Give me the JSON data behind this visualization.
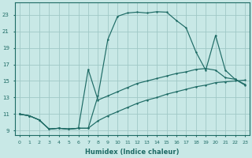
{
  "xlabel": "Humidex (Indice chaleur)",
  "xlim": [
    -0.5,
    23.5
  ],
  "ylim": [
    8.5,
    24.5
  ],
  "xticks": [
    0,
    1,
    2,
    3,
    4,
    5,
    6,
    7,
    8,
    9,
    10,
    11,
    12,
    13,
    14,
    15,
    16,
    17,
    18,
    19,
    20,
    21,
    22,
    23
  ],
  "yticks": [
    9,
    11,
    13,
    15,
    17,
    19,
    21,
    23
  ],
  "bg_color": "#c8e8e6",
  "grid_color": "#a0c8c6",
  "line_color": "#1e6b65",
  "line1_x": [
    0,
    1,
    2,
    3,
    4,
    5,
    6,
    7,
    8,
    9,
    10,
    11,
    12,
    13,
    14,
    15,
    16,
    17,
    18,
    19,
    20,
    21,
    22,
    23
  ],
  "line1_y": [
    11.0,
    10.8,
    10.3,
    9.2,
    9.3,
    9.2,
    9.3,
    9.3,
    10.2,
    10.8,
    11.3,
    11.8,
    12.3,
    12.7,
    13.0,
    13.4,
    13.7,
    14.0,
    14.3,
    14.5,
    14.8,
    14.9,
    15.0,
    15.1
  ],
  "line2_x": [
    0,
    1,
    2,
    3,
    4,
    5,
    6,
    7,
    8,
    9,
    10,
    11,
    12,
    13,
    14,
    15,
    16,
    17,
    18,
    19,
    20,
    21,
    22,
    23
  ],
  "line2_y": [
    11.0,
    10.8,
    10.3,
    9.2,
    9.3,
    9.2,
    9.3,
    16.4,
    12.7,
    13.2,
    13.7,
    14.2,
    14.7,
    15.0,
    15.3,
    15.6,
    15.9,
    16.1,
    16.4,
    16.5,
    16.3,
    15.4,
    15.2,
    14.6
  ],
  "line3_x": [
    0,
    1,
    2,
    3,
    4,
    5,
    6,
    7,
    8,
    9,
    10,
    11,
    12,
    13,
    14,
    15,
    16,
    17,
    18,
    19,
    20,
    21,
    22,
    23
  ],
  "line3_y": [
    11.0,
    10.8,
    10.3,
    9.2,
    9.3,
    9.2,
    9.3,
    9.3,
    13.2,
    20.0,
    22.8,
    23.2,
    23.3,
    23.2,
    23.35,
    23.3,
    22.3,
    21.4,
    18.5,
    16.3,
    20.5,
    16.3,
    15.2,
    14.5
  ]
}
